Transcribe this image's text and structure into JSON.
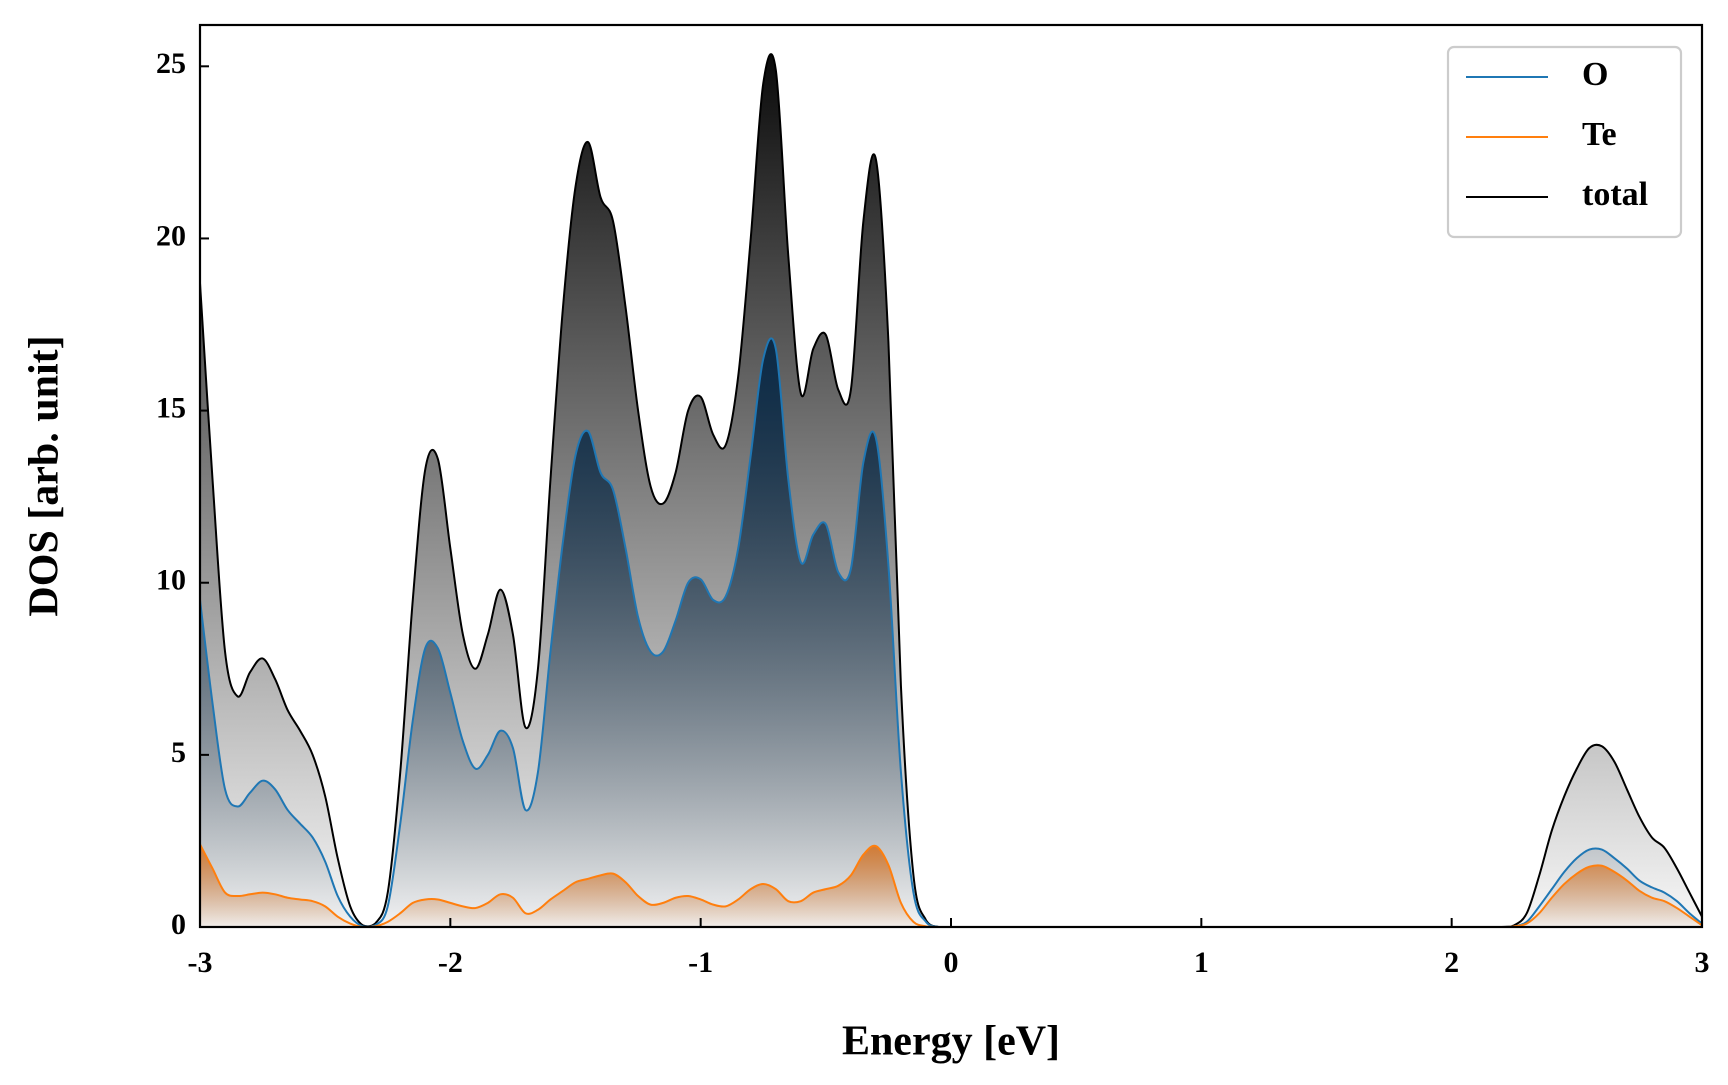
{
  "chart_data": {
    "type": "line",
    "x_label": "Energy [eV]",
    "y_label": "DOS [arb. unit]",
    "xlim": [
      -3,
      3
    ],
    "ylim": [
      0,
      26.2
    ],
    "xticks": [
      -3,
      -2,
      -1,
      0,
      1,
      2,
      3
    ],
    "yticks": [
      0,
      5,
      10,
      15,
      20,
      25
    ],
    "legend": "upper right",
    "x": [
      -3,
      -2.95,
      -2.9,
      -2.85,
      -2.8,
      -2.75,
      -2.7,
      -2.65,
      -2.6,
      -2.55,
      -2.5,
      -2.45,
      -2.4,
      -2.35,
      -2.3,
      -2.25,
      -2.2,
      -2.15,
      -2.1,
      -2.05,
      -2,
      -1.95,
      -1.9,
      -1.85,
      -1.8,
      -1.75,
      -1.7,
      -1.65,
      -1.6,
      -1.55,
      -1.5,
      -1.45,
      -1.4,
      -1.35,
      -1.3,
      -1.25,
      -1.2,
      -1.15,
      -1.1,
      -1.05,
      -1,
      -0.95,
      -0.9,
      -0.85,
      -0.8,
      -0.75,
      -0.7,
      -0.65,
      -0.6,
      -0.55,
      -0.5,
      -0.45,
      -0.4,
      -0.35,
      -0.3,
      -0.25,
      -0.2,
      -0.15,
      -0.1,
      -0.05,
      0,
      0.5,
      1,
      1.5,
      2,
      2.2,
      2.25,
      2.3,
      2.35,
      2.4,
      2.45,
      2.5,
      2.55,
      2.6,
      2.65,
      2.7,
      2.75,
      2.8,
      2.85,
      2.9,
      2.95,
      3
    ],
    "series": [
      {
        "name": "O",
        "color": "#1f77b4",
        "values": [
          9.5,
          6.5,
          4.0,
          3.5,
          3.9,
          4.25,
          4.0,
          3.4,
          3.0,
          2.6,
          1.9,
          0.9,
          0.3,
          0.02,
          0.05,
          0.6,
          3.0,
          6.0,
          8.1,
          8.1,
          6.8,
          5.4,
          4.6,
          5.0,
          5.7,
          5.2,
          3.4,
          4.5,
          8.0,
          11.2,
          13.7,
          14.4,
          13.2,
          12.7,
          11.0,
          9.0,
          8.0,
          8.0,
          8.9,
          10.0,
          10.1,
          9.5,
          9.6,
          11.0,
          13.7,
          16.5,
          16.8,
          13.0,
          10.6,
          11.4,
          11.7,
          10.3,
          10.4,
          13.5,
          14.2,
          10.5,
          4.5,
          1.0,
          0.15,
          0,
          0,
          0,
          0,
          0,
          0,
          0,
          0.02,
          0.15,
          0.6,
          1.1,
          1.6,
          2.0,
          2.25,
          2.25,
          2.0,
          1.7,
          1.35,
          1.15,
          1.0,
          0.75,
          0.4,
          0.1
        ]
      },
      {
        "name": "Te",
        "color": "#ff7f0e",
        "values": [
          2.4,
          1.7,
          1.0,
          0.9,
          0.95,
          1.0,
          0.95,
          0.85,
          0.8,
          0.75,
          0.6,
          0.3,
          0.1,
          0,
          0.02,
          0.15,
          0.4,
          0.7,
          0.8,
          0.8,
          0.7,
          0.6,
          0.55,
          0.7,
          0.95,
          0.85,
          0.4,
          0.5,
          0.8,
          1.05,
          1.3,
          1.4,
          1.5,
          1.55,
          1.3,
          0.9,
          0.65,
          0.7,
          0.85,
          0.9,
          0.8,
          0.65,
          0.6,
          0.8,
          1.1,
          1.25,
          1.1,
          0.75,
          0.75,
          1.0,
          1.1,
          1.2,
          1.5,
          2.1,
          2.35,
          1.8,
          0.7,
          0.15,
          0.02,
          0,
          0,
          0,
          0,
          0,
          0,
          0,
          0.02,
          0.1,
          0.4,
          0.85,
          1.25,
          1.55,
          1.75,
          1.78,
          1.6,
          1.35,
          1.05,
          0.85,
          0.75,
          0.55,
          0.3,
          0.05
        ]
      },
      {
        "name": "total",
        "color": "#000000",
        "values": [
          18.7,
          13,
          8,
          6.7,
          7.4,
          7.8,
          7.2,
          6.3,
          5.7,
          5.0,
          3.8,
          2.0,
          0.6,
          0.05,
          0.1,
          1.0,
          4.5,
          9.5,
          13.3,
          13.6,
          11.0,
          8.5,
          7.5,
          8.5,
          9.8,
          8.5,
          5.8,
          7.5,
          13,
          18,
          21.5,
          22.8,
          21.2,
          20.5,
          18,
          15,
          12.8,
          12.3,
          13.2,
          15.0,
          15.4,
          14.3,
          14.0,
          16,
          20,
          24.5,
          24.9,
          19.5,
          15.5,
          16.8,
          17.2,
          15.6,
          15.6,
          20.5,
          22.3,
          17,
          7,
          1.5,
          0.2,
          0,
          0,
          0,
          0,
          0,
          0,
          0,
          0.05,
          0.4,
          1.5,
          2.8,
          3.8,
          4.6,
          5.2,
          5.25,
          4.8,
          4.0,
          3.2,
          2.6,
          2.3,
          1.7,
          1.0,
          0.3
        ]
      }
    ]
  }
}
